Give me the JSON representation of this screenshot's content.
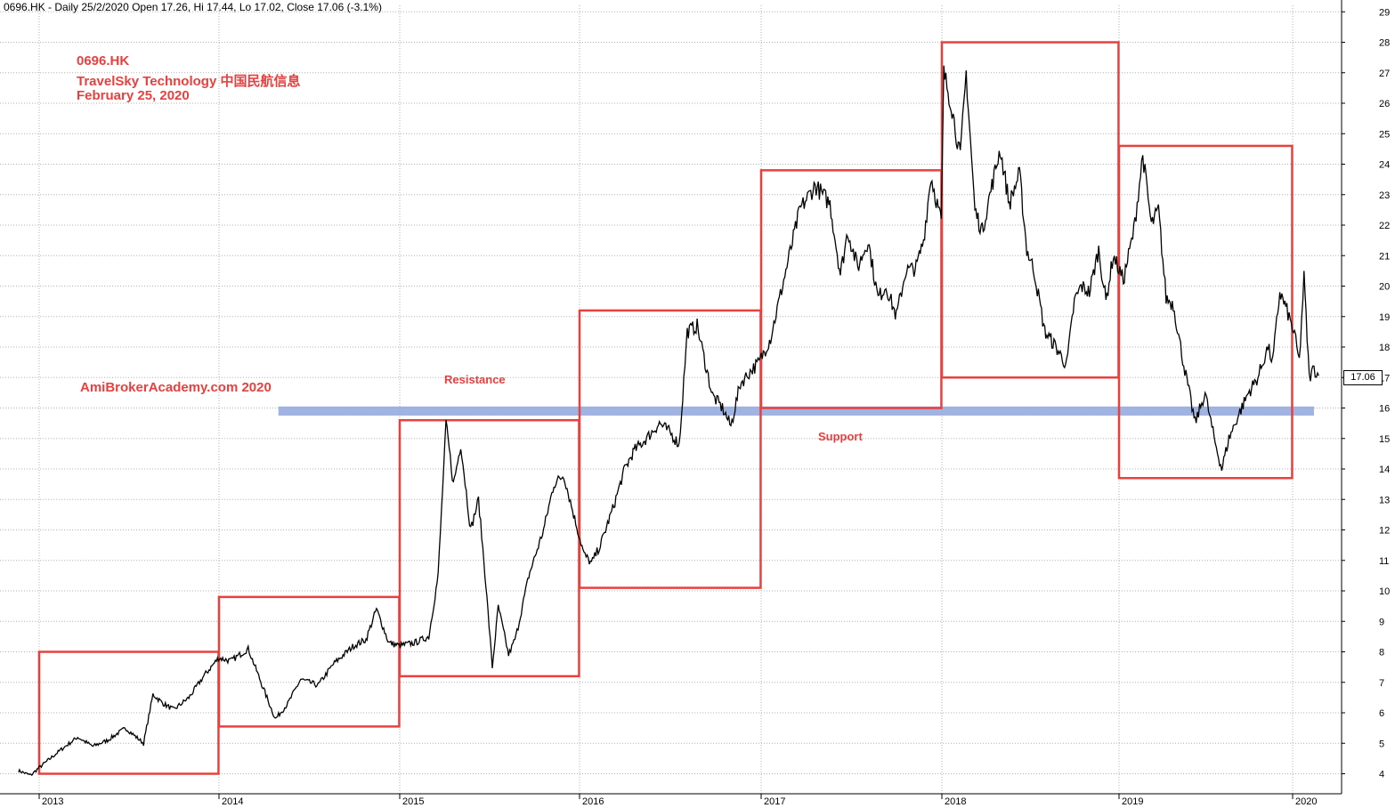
{
  "header": {
    "text": "0696.HK - Daily 25/2/2020 Open 17.26, Hi 17.44, Lo 17.02, Close 17.06 (-3.1%)"
  },
  "annotations": {
    "ticker": "0696.HK",
    "company": "TravelSky Technology  中国民航信息",
    "date": "February 25, 2020",
    "watermark": "AmiBrokerAcademy.com  2020",
    "resistance_label": "Resistance",
    "support_label": "Support"
  },
  "last_price_label": "17.06",
  "colors": {
    "price_line": "#000000",
    "box": "#e8403f",
    "support_band": "#8fa6dc",
    "annotation_text": "#e8403f",
    "grid": "#b0b0b0"
  },
  "chart_data": {
    "type": "line",
    "title": "",
    "xlabel": "",
    "ylabel": "",
    "x_range": [
      "2012-11-20",
      "2020-02-25"
    ],
    "ylim": [
      3.5,
      29.2
    ],
    "y_ticks": [
      4,
      5,
      6,
      7,
      8,
      9,
      10,
      11,
      12,
      13,
      14,
      15,
      16,
      17,
      18,
      19,
      20,
      21,
      22,
      23,
      24,
      25,
      26,
      27,
      28,
      29
    ],
    "x_ticks": [
      {
        "date": "2013-01-01",
        "label": "2013"
      },
      {
        "date": "2014-01-01",
        "label": "2014"
      },
      {
        "date": "2015-01-01",
        "label": "2015"
      },
      {
        "date": "2016-01-01",
        "label": "2016"
      },
      {
        "date": "2017-01-01",
        "label": "2017"
      },
      {
        "date": "2018-01-01",
        "label": "2018"
      },
      {
        "date": "2019-01-01",
        "label": "2019"
      },
      {
        "date": "2020-01-01",
        "label": "2020"
      }
    ],
    "grid": true,
    "series": [
      {
        "x": [
          "2012-11-20",
          "2012-12-15",
          "2013-01-01",
          "2013-02-15",
          "2013-03-20",
          "2013-04-20",
          "2013-05-20",
          "2013-06-25",
          "2013-08-01",
          "2013-08-20",
          "2013-09-10",
          "2013-10-01",
          "2013-11-01",
          "2013-12-01",
          "2013-12-31",
          "2014-01-25",
          "2014-03-01",
          "2014-04-10",
          "2014-04-25",
          "2014-05-20",
          "2014-06-15",
          "2014-07-20",
          "2014-08-20",
          "2014-09-30",
          "2014-10-25",
          "2014-11-15",
          "2014-12-10",
          "2014-12-31",
          "2015-02-01",
          "2015-03-01",
          "2015-03-20",
          "2015-04-05",
          "2015-04-20",
          "2015-05-05",
          "2015-05-25",
          "2015-06-10",
          "2015-06-25",
          "2015-07-08",
          "2015-07-20",
          "2015-08-10",
          "2015-08-25",
          "2015-09-20",
          "2015-10-20",
          "2015-11-10",
          "2015-11-30",
          "2015-12-20",
          "2016-01-10",
          "2016-01-25",
          "2016-02-12",
          "2016-03-10",
          "2016-04-01",
          "2016-04-20",
          "2016-05-15",
          "2016-06-10",
          "2016-07-01",
          "2016-07-20",
          "2016-08-05",
          "2016-08-25",
          "2016-09-10",
          "2016-09-25",
          "2016-10-15",
          "2016-11-01",
          "2016-11-20",
          "2016-12-10",
          "2016-12-28",
          "2017-01-20",
          "2017-02-20",
          "2017-03-20",
          "2017-04-20",
          "2017-05-20",
          "2017-06-10",
          "2017-06-25",
          "2017-07-15",
          "2017-08-05",
          "2017-08-25",
          "2017-09-10",
          "2017-10-01",
          "2017-10-20",
          "2017-11-10",
          "2017-11-25",
          "2017-12-10",
          "2017-12-31",
          "2018-01-05",
          "2018-01-20",
          "2018-02-08",
          "2018-02-20",
          "2018-03-10",
          "2018-03-25",
          "2018-04-10",
          "2018-05-01",
          "2018-05-20",
          "2018-06-10",
          "2018-06-25",
          "2018-07-10",
          "2018-08-01",
          "2018-08-20",
          "2018-09-15",
          "2018-10-01",
          "2018-10-15",
          "2018-11-01",
          "2018-11-20",
          "2018-12-05",
          "2018-12-20",
          "2019-01-10",
          "2019-02-01",
          "2019-02-20",
          "2019-03-10",
          "2019-03-25",
          "2019-04-10",
          "2019-04-25",
          "2019-05-15",
          "2019-06-10",
          "2019-07-01",
          "2019-07-20",
          "2019-08-05",
          "2019-08-20",
          "2019-09-10",
          "2019-09-30",
          "2019-10-20",
          "2019-11-10",
          "2019-11-20",
          "2019-12-05",
          "2019-12-20",
          "2020-01-05",
          "2020-01-15",
          "2020-01-25",
          "2020-02-05",
          "2020-02-15",
          "2020-02-25"
        ],
        "y": [
          4.1,
          3.95,
          4.2,
          4.8,
          5.2,
          4.9,
          5.1,
          5.5,
          5.0,
          6.6,
          6.3,
          6.1,
          6.5,
          7.2,
          7.8,
          7.7,
          8.1,
          6.4,
          5.8,
          6.3,
          7.1,
          6.9,
          7.6,
          8.2,
          8.4,
          9.4,
          8.3,
          8.2,
          8.3,
          8.5,
          10.5,
          15.5,
          13.5,
          14.8,
          12.0,
          13.0,
          10.2,
          7.5,
          9.5,
          7.9,
          8.5,
          10.5,
          12.0,
          13.5,
          13.8,
          12.5,
          11.2,
          10.9,
          11.5,
          12.8,
          14.0,
          14.6,
          15.0,
          15.5,
          15.2,
          14.8,
          18.5,
          18.7,
          17.5,
          16.4,
          16.0,
          15.4,
          16.8,
          17.2,
          17.5,
          18.3,
          20.5,
          22.5,
          23.3,
          22.7,
          20.4,
          21.8,
          20.6,
          21.5,
          19.6,
          20.0,
          19.0,
          20.5,
          20.6,
          21.5,
          23.6,
          22.1,
          27.0,
          26.0,
          24.2,
          27.0,
          22.5,
          21.8,
          23.0,
          24.5,
          22.7,
          23.7,
          21.2,
          20.5,
          18.5,
          18.1,
          17.4,
          19.5,
          20.0,
          19.8,
          21.2,
          19.5,
          21.0,
          20.2,
          21.8,
          24.3,
          22.0,
          22.5,
          19.6,
          19.4,
          17.6,
          15.5,
          16.5,
          15.0,
          14.0,
          15.0,
          15.8,
          16.5,
          17.0,
          18.0,
          17.5,
          19.8,
          19.2,
          18.4,
          17.5,
          20.3,
          17.0,
          17.3,
          17.06
        ]
      }
    ],
    "boxes": [
      {
        "x0": "2013-01-01",
        "x1": "2013-12-31",
        "y_low": 4.0,
        "y_high": 8.0
      },
      {
        "x0": "2014-01-01",
        "x1": "2014-12-31",
        "y_low": 5.55,
        "y_high": 9.8
      },
      {
        "x0": "2015-01-01",
        "x1": "2015-12-31",
        "y_low": 7.2,
        "y_high": 15.6
      },
      {
        "x0": "2016-01-01",
        "x1": "2016-12-31",
        "y_low": 10.1,
        "y_high": 19.2
      },
      {
        "x0": "2017-01-01",
        "x1": "2017-12-31",
        "y_low": 16.0,
        "y_high": 23.8
      },
      {
        "x0": "2018-01-01",
        "x1": "2018-12-31",
        "y_low": 17.0,
        "y_high": 28.0
      },
      {
        "x0": "2019-01-01",
        "x1": "2019-12-31",
        "y_low": 13.7,
        "y_high": 24.6
      }
    ],
    "support_band": {
      "x0": "2014-05-01",
      "x1": "2020-02-15",
      "y_low": 15.75,
      "y_high": 16.05
    }
  }
}
